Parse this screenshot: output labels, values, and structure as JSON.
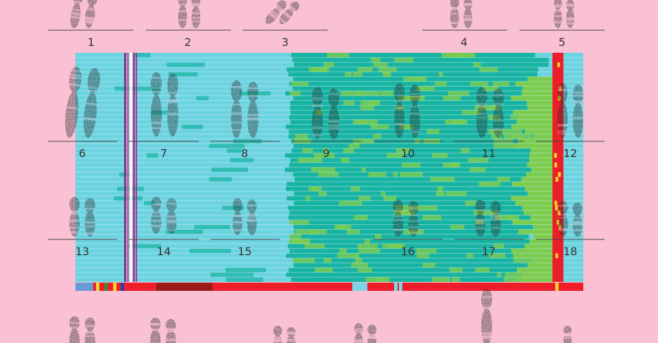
{
  "karyotype": {
    "labels": [
      "1",
      "2",
      "3",
      "4",
      "5",
      "6",
      "7",
      "8",
      "9",
      "10",
      "11",
      "12",
      "13",
      "14",
      "15",
      "16",
      "17",
      "18"
    ]
  },
  "colors": {
    "background": "#f9c1d3",
    "heatmap_base": "#6cd3e0",
    "heatmap_teal": "#17b3a3",
    "heatmap_green": "#7ccc4f",
    "heatmap_red": "#ee1d2a",
    "chromosome": "#2a2a2a",
    "underline": "#444444"
  }
}
